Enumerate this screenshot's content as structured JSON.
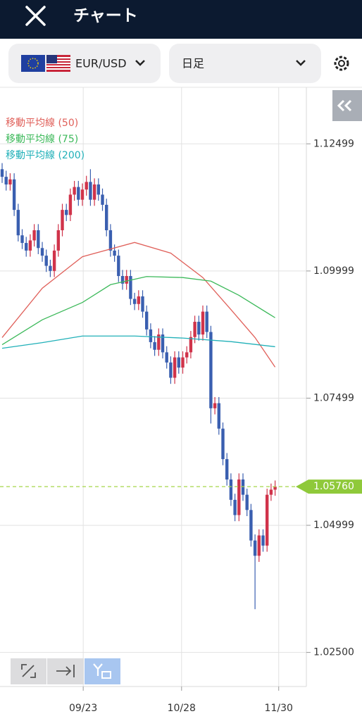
{
  "header": {
    "title": "チャート"
  },
  "toolbar": {
    "pair": "EUR/USD",
    "timeframe": "日足"
  },
  "chart_data": {
    "type": "candlestick",
    "open": [
      1.12,
      1.1185,
      1.117,
      1.118,
      1.112,
      1.107,
      1.1055,
      1.104,
      1.106,
      1.108,
      1.1045,
      1.103,
      1.101,
      1.1,
      1.104,
      1.108,
      1.112,
      1.111,
      1.115,
      1.1165,
      1.114,
      1.116,
      1.1175,
      1.114,
      1.117,
      1.115,
      1.113,
      1.108,
      1.104,
      1.103,
      1.099,
      1.0975,
      1.099,
      1.0945,
      1.0935,
      1.095,
      1.092,
      1.0885,
      1.086,
      1.0845,
      1.0875,
      1.084,
      1.082,
      1.079,
      1.083,
      1.081,
      1.083,
      1.084,
      1.087,
      1.09,
      1.0875,
      1.092,
      1.088,
      1.073,
      1.074,
      1.069,
      1.063,
      1.059,
      1.055,
      1.052,
      1.059,
      1.056,
      1.053,
      1.047,
      1.044,
      1.048,
      1.046,
      1.056,
      1.057
    ],
    "high": [
      1.1212,
      1.1197,
      1.1192,
      1.1192,
      1.1132,
      1.1082,
      1.1067,
      1.1072,
      1.1092,
      1.1092,
      1.1057,
      1.1042,
      1.1022,
      1.1052,
      1.1092,
      1.1132,
      1.1132,
      1.1162,
      1.1177,
      1.1177,
      1.1172,
      1.1187,
      1.12,
      1.1182,
      1.1182,
      1.1162,
      1.1142,
      1.1092,
      1.1052,
      1.1042,
      1.1002,
      1.1002,
      1.1002,
      1.0957,
      1.0962,
      1.0962,
      1.0932,
      1.0897,
      1.0872,
      1.0887,
      1.0887,
      1.0852,
      1.0832,
      1.0842,
      1.0842,
      1.0842,
      1.0852,
      1.0882,
      1.0912,
      1.0912,
      1.0932,
      1.0932,
      1.0892,
      1.0752,
      1.0752,
      1.0702,
      1.0642,
      1.0602,
      1.0562,
      1.0602,
      1.0602,
      1.0572,
      1.0542,
      1.0482,
      1.0492,
      1.0492,
      1.0572,
      1.0582,
      1.0588
    ],
    "low": [
      1.1173,
      1.1158,
      1.1158,
      1.1108,
      1.1058,
      1.1043,
      1.1028,
      1.1028,
      1.1048,
      1.1033,
      1.1018,
      1.0998,
      1.0988,
      1.0988,
      1.1028,
      1.1068,
      1.1098,
      1.1098,
      1.1138,
      1.1128,
      1.1128,
      1.1148,
      1.1128,
      1.1128,
      1.1138,
      1.1118,
      1.1068,
      1.1028,
      1.1018,
      1.0978,
      1.0963,
      1.0963,
      1.0933,
      1.0923,
      1.0923,
      1.0908,
      1.0873,
      1.0848,
      1.0833,
      1.0833,
      1.0828,
      1.0808,
      1.0778,
      1.0778,
      1.0798,
      1.0798,
      1.0818,
      1.0828,
      1.0858,
      1.0863,
      1.0863,
      1.0868,
      1.07,
      1.0718,
      1.0678,
      1.0618,
      1.0578,
      1.0538,
      1.0508,
      1.0508,
      1.0548,
      1.0518,
      1.0458,
      1.0335,
      1.0428,
      1.0448,
      1.0448,
      1.0548,
      1.0558
    ],
    "close": [
      1.1185,
      1.117,
      1.118,
      1.112,
      1.107,
      1.1055,
      1.104,
      1.106,
      1.108,
      1.1045,
      1.103,
      1.101,
      1.1,
      1.104,
      1.108,
      1.112,
      1.111,
      1.115,
      1.1165,
      1.114,
      1.116,
      1.1175,
      1.114,
      1.117,
      1.115,
      1.113,
      1.108,
      1.104,
      1.103,
      1.099,
      1.0975,
      1.099,
      1.0945,
      1.0935,
      1.095,
      1.092,
      1.0885,
      1.086,
      1.0845,
      1.0875,
      1.084,
      1.082,
      1.079,
      1.083,
      1.081,
      1.083,
      1.084,
      1.087,
      1.09,
      1.0875,
      1.092,
      1.088,
      1.073,
      1.074,
      1.069,
      1.063,
      1.059,
      1.055,
      1.052,
      1.059,
      1.056,
      1.053,
      1.047,
      1.044,
      1.048,
      1.046,
      1.056,
      1.057,
      1.0576
    ],
    "up_color": "#d0334a",
    "down_color": "#3a5fb0",
    "series": [
      {
        "name": "移動平均線 (50)",
        "color": "#e0605a",
        "x": [
          0,
          10,
          20,
          33,
          42,
          50,
          57,
          63,
          68
        ],
        "values": [
          1.0869,
          1.0966,
          1.1028,
          1.1056,
          1.1035,
          1.0987,
          1.0924,
          1.0869,
          1.0811
        ]
      },
      {
        "name": "移動平均線 (75)",
        "color": "#3cb95a",
        "x": [
          0,
          10,
          20,
          27,
          36,
          45,
          52,
          59,
          68
        ],
        "values": [
          1.0855,
          1.0904,
          1.0938,
          1.0973,
          1.0989,
          1.0987,
          1.098,
          1.0952,
          1.0908
        ]
      },
      {
        "name": "移動平均線 (200)",
        "color": "#20b0b8",
        "x": [
          0,
          10,
          20,
          33,
          45,
          57,
          68
        ],
        "values": [
          1.0848,
          1.0859,
          1.0872,
          1.0872,
          1.0868,
          1.0861,
          1.0851
        ]
      }
    ],
    "current_price": {
      "value": 1.0576,
      "label": "1.05760"
    },
    "xlim": [
      -0.53,
      75.79
    ],
    "xticks": [
      {
        "value": 20.2,
        "label": "09/23"
      },
      {
        "value": 44.7,
        "label": "10/28"
      },
      {
        "value": 68.9,
        "label": "11/30"
      }
    ],
    "ylim": [
      1.0183,
      1.1361
    ],
    "yticks": [
      1.12499,
      1.09999,
      1.07499,
      1.04999,
      {
        "value": 1.025,
        "label": "1.02500"
      }
    ],
    "grid": true
  }
}
